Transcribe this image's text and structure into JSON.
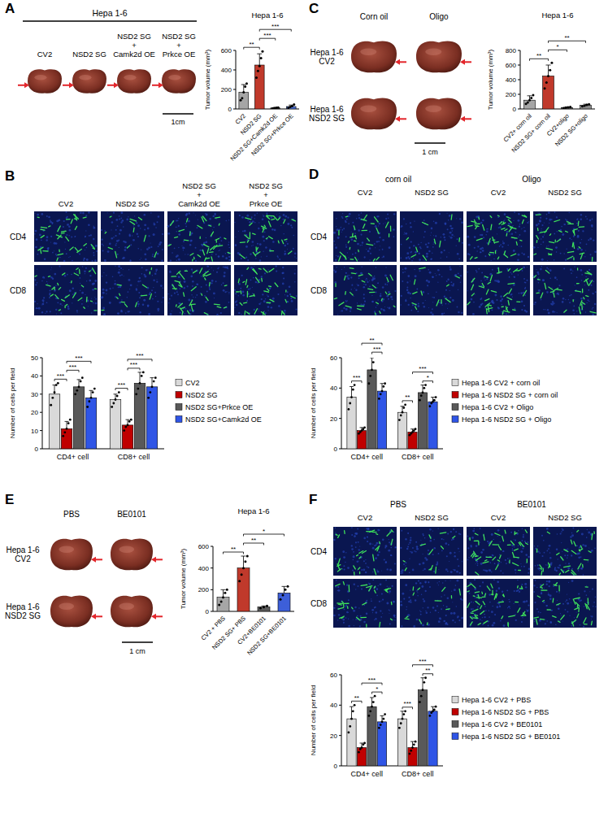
{
  "chart_data": [
    {
      "type": "bar",
      "title": "Hepa 1-6",
      "y_label": "Tumor volume (mm³)",
      "categories": [
        "CV2",
        "NSD2 SG",
        "NSD2 SG+Camk2d OE",
        "NSD2 SG+Prkce OE"
      ],
      "values": [
        170,
        450,
        10,
        25
      ],
      "errors": [
        80,
        115,
        5,
        15
      ],
      "points": [
        [
          90,
          110,
          170,
          230,
          260
        ],
        [
          320,
          390,
          440,
          520,
          590
        ],
        [
          5,
          8,
          12,
          15
        ],
        [
          10,
          20,
          30,
          45
        ]
      ],
      "colors": [
        "#a6a6a6",
        "#c0392b",
        "#4d4d4d",
        "#4a6fd6"
      ],
      "ylim": [
        0,
        600
      ],
      "yticks": [
        0,
        200,
        400,
        600
      ],
      "comparisons": [
        {
          "pair": [
            0,
            1
          ],
          "label": "**"
        },
        {
          "pair": [
            1,
            2
          ],
          "label": "***"
        },
        {
          "pair": [
            1,
            3
          ],
          "label": "***"
        }
      ]
    },
    {
      "type": "bar",
      "y_label": "Number of cells per field",
      "categories": [
        "CD4+ cell",
        "CD8+ cell"
      ],
      "series": [
        {
          "name": "CV2",
          "color": "#d9d9d9",
          "values": [
            30,
            27
          ],
          "errors": [
            5,
            3
          ],
          "points": [
            [
              24,
              28,
              31,
              35,
              36
            ],
            [
              23,
              25,
              27,
              29,
              31
            ]
          ]
        },
        {
          "name": "NSD2 SG",
          "color": "#c00000",
          "values": [
            11,
            13
          ],
          "errors": [
            4,
            3
          ],
          "points": [
            [
              7,
              9,
              11,
              14,
              16
            ],
            [
              10,
              12,
              13,
              15,
              16
            ]
          ]
        },
        {
          "name": "NSD2 SG+Prkce OE",
          "color": "#595959",
          "values": [
            34,
            36
          ],
          "errors": [
            4,
            6
          ],
          "points": [
            [
              30,
              32,
              34,
              37,
              39
            ],
            [
              30,
              33,
              36,
              40,
              42
            ]
          ]
        },
        {
          "name": "NSD2 SG+Camk2d OE",
          "color": "#2f55e6",
          "values": [
            28,
            34
          ],
          "errors": [
            4,
            5
          ],
          "points": [
            [
              23,
              26,
              28,
              31,
              33
            ],
            [
              28,
              31,
              34,
              37,
              39
            ]
          ]
        }
      ],
      "ylim": [
        0,
        50
      ],
      "yticks": [
        0,
        10,
        20,
        30,
        40,
        50
      ],
      "legend": "right",
      "comparisons": [
        {
          "category": 0,
          "pair": [
            0,
            1
          ],
          "label": "***"
        },
        {
          "category": 0,
          "pair": [
            1,
            2
          ],
          "label": "***"
        },
        {
          "category": 0,
          "pair": [
            1,
            3
          ],
          "label": "***"
        },
        {
          "category": 1,
          "pair": [
            0,
            1
          ],
          "label": "***"
        },
        {
          "category": 1,
          "pair": [
            1,
            2
          ],
          "label": "***"
        },
        {
          "category": 1,
          "pair": [
            1,
            3
          ],
          "label": "***"
        }
      ]
    },
    {
      "type": "bar",
      "title": "Hepa 1-6",
      "y_label": "Tumor volume (mm³)",
      "categories": [
        "CV2+ corn oil",
        "NSD2 SG+ corn oil",
        "CV2+oligo",
        "NSD2 SG+oligo"
      ],
      "values": [
        120,
        450,
        20,
        50
      ],
      "errors": [
        60,
        150,
        8,
        15
      ],
      "points": [
        [
          70,
          90,
          120,
          150,
          190
        ],
        [
          280,
          360,
          450,
          530,
          630
        ],
        [
          12,
          18,
          22,
          28
        ],
        [
          35,
          45,
          55,
          65
        ]
      ],
      "colors": [
        "#a6a6a6",
        "#c0392b",
        "#595959",
        "#8c8c8c"
      ],
      "ylim": [
        0,
        800
      ],
      "yticks": [
        0,
        200,
        400,
        600,
        800
      ],
      "comparisons": [
        {
          "pair": [
            0,
            1
          ],
          "label": "**"
        },
        {
          "pair": [
            1,
            2
          ],
          "label": "*"
        },
        {
          "pair": [
            1,
            3
          ],
          "label": "**"
        }
      ]
    },
    {
      "type": "bar",
      "y_label": "Number of cells per field",
      "categories": [
        "CD4+ cell",
        "CD8+ cell"
      ],
      "series": [
        {
          "name": "Hepa 1-6 CV2 + corn oil",
          "color": "#d9d9d9",
          "values": [
            34,
            24
          ],
          "errors": [
            7,
            4
          ],
          "points": [
            [
              26,
              30,
              34,
              39,
              42
            ],
            [
              19,
              22,
              24,
              27,
              29
            ]
          ]
        },
        {
          "name": "Hepa 1-6 NSD2 SG + corn oil",
          "color": "#c00000",
          "values": [
            12,
            11
          ],
          "errors": [
            2,
            2
          ],
          "points": [
            [
              10,
              11,
              12,
              13,
              14
            ],
            [
              9,
              10,
              11,
              12,
              13
            ]
          ]
        },
        {
          "name": "Hepa 1-6 CV2 + Oligo",
          "color": "#595959",
          "values": [
            52,
            37
          ],
          "errors": [
            8,
            5
          ],
          "points": [
            [
              43,
              48,
              52,
              57,
              61
            ],
            [
              32,
              35,
              37,
              40,
              42
            ]
          ]
        },
        {
          "name": "Hepa 1-6 NSD2 SG + Oligo",
          "color": "#2f55e6",
          "values": [
            38,
            31
          ],
          "errors": [
            5,
            3
          ],
          "points": [
            [
              33,
              36,
              38,
              41,
              43
            ],
            [
              28,
              30,
              31,
              32,
              34
            ]
          ]
        }
      ],
      "ylim": [
        0,
        60
      ],
      "yticks": [
        0,
        20,
        40,
        60
      ],
      "legend": "right",
      "comparisons": [
        {
          "category": 0,
          "pair": [
            0,
            1
          ],
          "label": "***"
        },
        {
          "category": 0,
          "pair": [
            2,
            3
          ],
          "label": "***"
        },
        {
          "category": 0,
          "pair": [
            1,
            3
          ],
          "label": "**"
        },
        {
          "category": 1,
          "pair": [
            0,
            1
          ],
          "label": "**"
        },
        {
          "category": 1,
          "pair": [
            2,
            3
          ],
          "label": "*"
        },
        {
          "category": 1,
          "pair": [
            1,
            3
          ],
          "label": "***"
        }
      ]
    },
    {
      "type": "bar",
      "title": "Hepa 1-6",
      "y_label": "Tumor volume (mm³)",
      "categories": [
        "CV2 + PBS",
        "NSD2 SG+ PBS",
        "CV2+BE0101",
        "NSD2 SG+BE0101"
      ],
      "values": [
        130,
        400,
        40,
        170
      ],
      "errors": [
        70,
        110,
        10,
        60
      ],
      "points": [
        [
          60,
          90,
          130,
          170,
          200
        ],
        [
          280,
          340,
          400,
          460,
          510
        ],
        [
          30,
          40,
          50
        ],
        [
          110,
          150,
          200,
          230
        ]
      ],
      "colors": [
        "#a6a6a6",
        "#c0392b",
        "#595959",
        "#3d5fd9"
      ],
      "ylim": [
        0,
        600
      ],
      "yticks": [
        0,
        200,
        400,
        600
      ],
      "comparisons": [
        {
          "pair": [
            0,
            1
          ],
          "label": "**"
        },
        {
          "pair": [
            1,
            2
          ],
          "label": "**"
        },
        {
          "pair": [
            1,
            3
          ],
          "label": "*"
        }
      ]
    },
    {
      "type": "bar",
      "y_label": "Number of cells per field",
      "categories": [
        "CD4+ cell",
        "CD8+ cell"
      ],
      "series": [
        {
          "name": "Hepa 1-6 CV2 + PBS",
          "color": "#d9d9d9",
          "values": [
            31,
            31
          ],
          "errors": [
            8,
            5
          ],
          "points": [
            [
              22,
              26,
              31,
              36,
              40
            ],
            [
              25,
              28,
              31,
              34,
              36
            ]
          ]
        },
        {
          "name": "Hepa 1-6 NSD2 SG + PBS",
          "color": "#c00000",
          "values": [
            12,
            12
          ],
          "errors": [
            3,
            4
          ],
          "points": [
            [
              9,
              11,
              12,
              14,
              15
            ],
            [
              8,
              10,
              12,
              14,
              16
            ]
          ]
        },
        {
          "name": "Hepa 1-6 CV2 + BE0101",
          "color": "#595959",
          "values": [
            39,
            50
          ],
          "errors": [
            6,
            8
          ],
          "points": [
            [
              33,
              36,
              39,
              42,
              46
            ],
            [
              42,
              46,
              50,
              55,
              58
            ]
          ]
        },
        {
          "name": "Hepa 1-6 NSD2 SG + BE0101",
          "color": "#2f55e6",
          "values": [
            29,
            36
          ],
          "errors": [
            4,
            3
          ],
          "points": [
            [
              25,
              27,
              29,
              31,
              34
            ],
            [
              33,
              35,
              36,
              37,
              39
            ]
          ]
        }
      ],
      "ylim": [
        0,
        60
      ],
      "yticks": [
        0,
        20,
        40,
        60
      ],
      "legend": "right",
      "comparisons": [
        {
          "category": 0,
          "pair": [
            0,
            1
          ],
          "label": "**"
        },
        {
          "category": 0,
          "pair": [
            2,
            3
          ],
          "label": "*"
        },
        {
          "category": 0,
          "pair": [
            1,
            3
          ],
          "label": "***"
        },
        {
          "category": 1,
          "pair": [
            0,
            1
          ],
          "label": "***"
        },
        {
          "category": 1,
          "pair": [
            2,
            3
          ],
          "label": "**"
        },
        {
          "category": 1,
          "pair": [
            1,
            3
          ],
          "label": "***"
        }
      ]
    }
  ],
  "panels": [
    {
      "letter": "A",
      "header": "Hepa 1-6",
      "columns": [
        "CV2",
        "NSD2 SG",
        "NSD2 SG + Camk2d OE",
        "NSD2 SG + Prkce OE"
      ],
      "scale_bar": "1cm"
    },
    {
      "letter": "B",
      "columns": [
        "CV2",
        "NSD2 SG",
        "NSD2 SG + Camk2d OE",
        "NSD2 SG + Prkce OE"
      ],
      "rows": [
        "CD4",
        "CD8"
      ]
    },
    {
      "letter": "C",
      "columns": [
        "Corn oil",
        "Oligo"
      ],
      "rows": [
        "Hepa 1-6 CV2",
        "Hepa 1-6 NSD2 SG"
      ],
      "scale_bar": "1 cm"
    },
    {
      "letter": "D",
      "groups": [
        "corn oil",
        "Oligo"
      ],
      "columns": [
        "CV2",
        "NSD2 SG",
        "CV2",
        "NSD2 SG"
      ],
      "rows": [
        "CD4",
        "CD8"
      ]
    },
    {
      "letter": "E",
      "columns": [
        "PBS",
        "BE0101"
      ],
      "rows": [
        "Hepa 1-6 CV2",
        "Hepa 1-6 NSD2 SG"
      ],
      "scale_bar": "1 cm"
    },
    {
      "letter": "F",
      "groups": [
        "PBS",
        "BE0101"
      ],
      "columns": [
        "CV2",
        "NSD2 SG",
        "CV2",
        "NSD2 SG"
      ],
      "rows": [
        "CD4",
        "CD8"
      ]
    }
  ]
}
